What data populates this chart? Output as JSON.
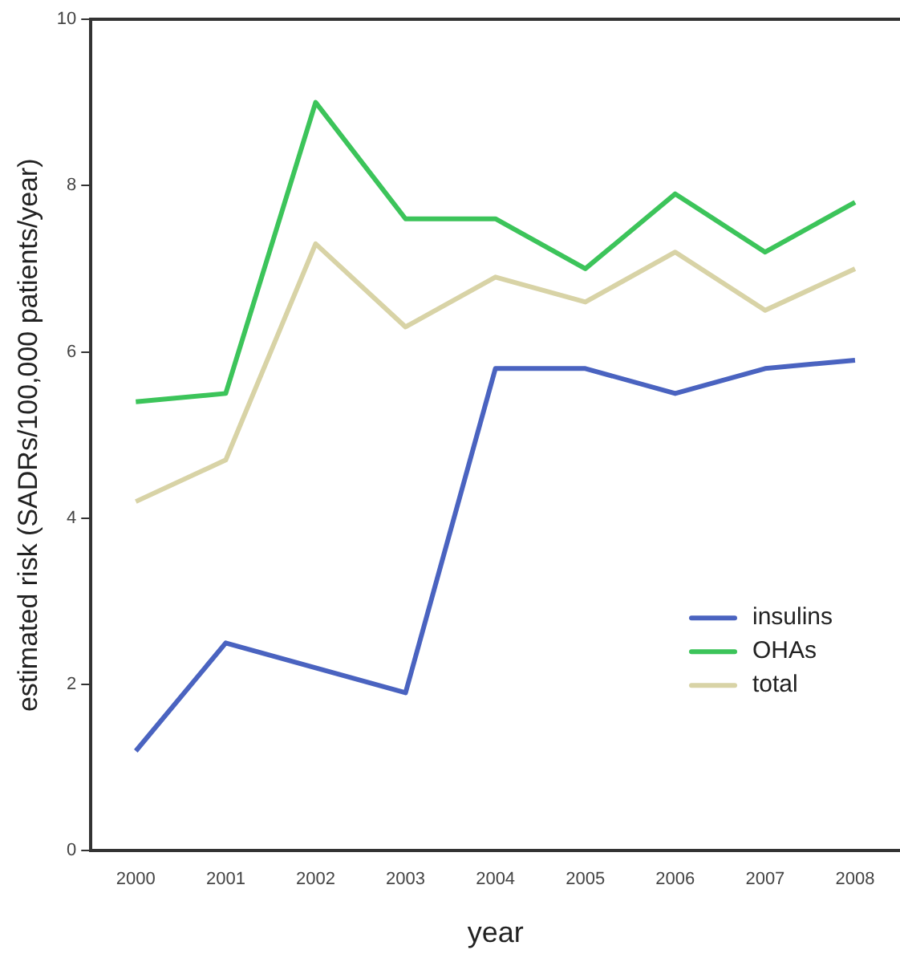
{
  "chart_data": {
    "type": "line",
    "xlabel": "year",
    "ylabel": "estimated risk (SADRs/100,000 patients/year)",
    "categories": [
      "2000",
      "2001",
      "2002",
      "2003",
      "2004",
      "2005",
      "2006",
      "2007",
      "2008"
    ],
    "series": [
      {
        "name": "insulins",
        "color": "#4a63c0",
        "values": [
          1.2,
          2.5,
          2.2,
          1.9,
          5.8,
          5.8,
          5.5,
          5.8,
          5.9
        ]
      },
      {
        "name": "OHAs",
        "color": "#3cc45a",
        "values": [
          5.4,
          5.5,
          9.0,
          7.6,
          7.6,
          7.0,
          7.9,
          7.2,
          7.8
        ]
      },
      {
        "name": "total",
        "color": "#d8d3a6",
        "values": [
          4.2,
          4.7,
          7.3,
          6.3,
          6.9,
          6.6,
          7.2,
          6.5,
          7.0
        ]
      }
    ],
    "ylim": [
      0,
      10
    ],
    "yticks": [
      0,
      2,
      4,
      6,
      8,
      10
    ],
    "grid": false,
    "legend": "bottom right",
    "marker": "none",
    "line_style": "solid"
  }
}
